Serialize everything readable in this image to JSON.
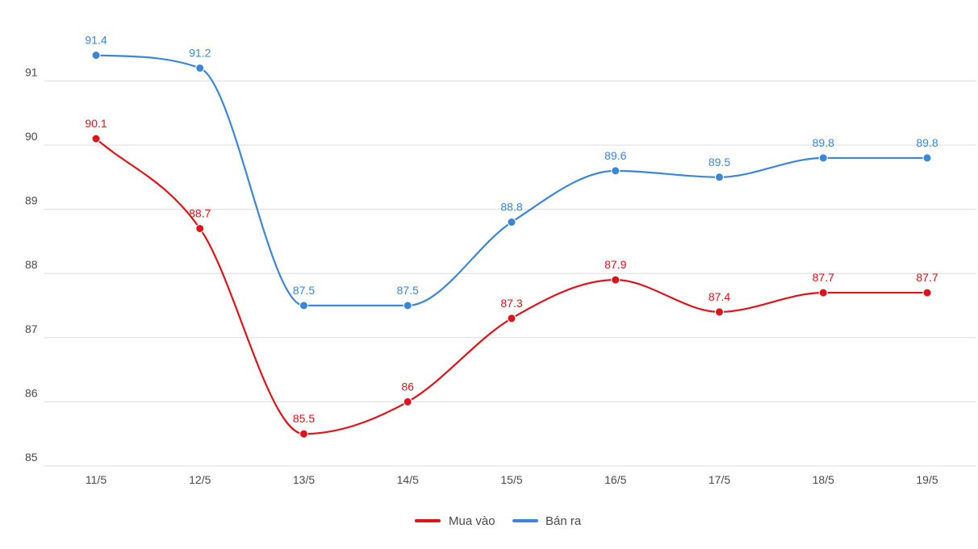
{
  "chart_data": {
    "type": "line",
    "title": "",
    "xlabel": "",
    "ylabel": "",
    "categories": [
      "11/5",
      "12/5",
      "13/5",
      "14/5",
      "15/5",
      "16/5",
      "17/5",
      "18/5",
      "19/5"
    ],
    "y_ticks": [
      "85",
      "86",
      "87",
      "88",
      "89",
      "90",
      "91"
    ],
    "ylim": [
      85,
      91.9
    ],
    "grid": true,
    "legend_position": "bottom-center",
    "series": [
      {
        "name": "Mua vào",
        "color": "#e0131b",
        "values": [
          90.1,
          88.7,
          85.5,
          86,
          87.3,
          87.9,
          87.4,
          87.7,
          87.7
        ],
        "labels": [
          "90.1",
          "88.7",
          "85.5",
          "86",
          "87.3",
          "87.9",
          "87.4",
          "87.7",
          "87.7"
        ]
      },
      {
        "name": "Bán ra",
        "color": "#3a86d8",
        "values": [
          91.4,
          91.2,
          87.5,
          87.5,
          88.8,
          89.6,
          89.5,
          89.8,
          89.8
        ],
        "labels": [
          "91.4",
          "91.2",
          "87.5",
          "87.5",
          "88.8",
          "89.6",
          "89.5",
          "89.8",
          "89.8"
        ]
      }
    ]
  }
}
